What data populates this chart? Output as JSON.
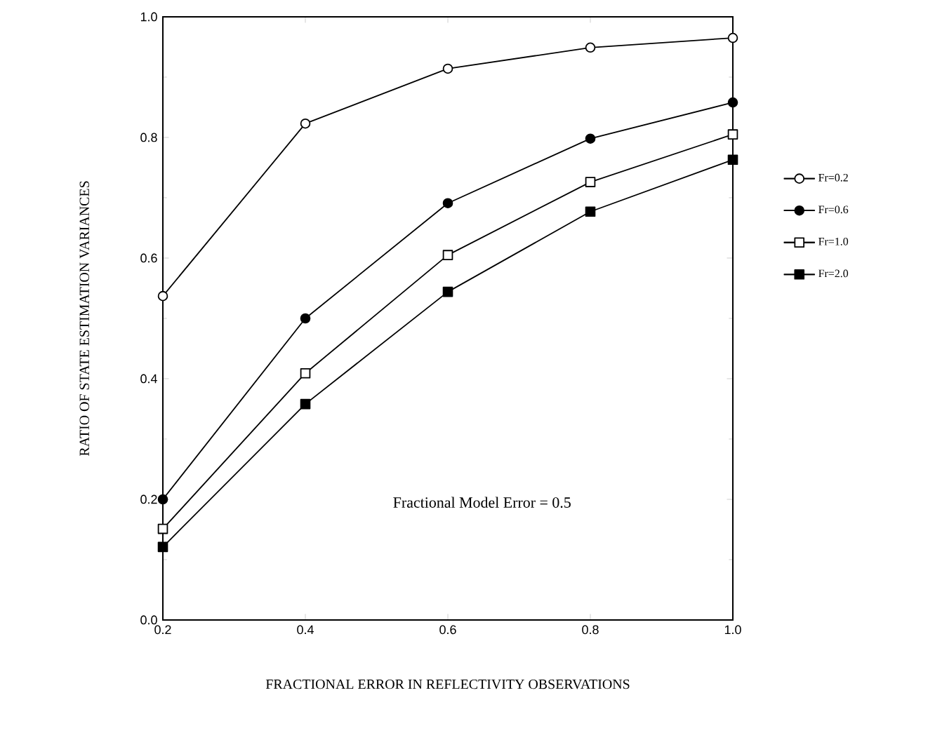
{
  "chart_data": {
    "type": "line",
    "xlabel": "FRACTIONAL ERROR IN REFLECTIVITY OBSERVATIONS",
    "ylabel": "RATIO OF STATE ESTIMATION VARIANCES",
    "annotations": [
      "Fractional Model Error = 0.5"
    ],
    "x": [
      0.2,
      0.4,
      0.6,
      0.8,
      1.0
    ],
    "xlim": [
      0.2,
      1.0
    ],
    "ylim": [
      0.0,
      1.0
    ],
    "xticks": [
      {
        "value": 0.2,
        "label": "0.2"
      },
      {
        "value": 0.4,
        "label": "0.4"
      },
      {
        "value": 0.6,
        "label": "0.6"
      },
      {
        "value": 0.8,
        "label": "0.8"
      },
      {
        "value": 1.0,
        "label": "1.0"
      }
    ],
    "yticks": [
      {
        "value": 0.0,
        "label": "0.0"
      },
      {
        "value": 0.2,
        "label": "0.2"
      },
      {
        "value": 0.4,
        "label": "0.4"
      },
      {
        "value": 0.6,
        "label": "0.6"
      },
      {
        "value": 0.8,
        "label": "0.8"
      },
      {
        "value": 1.0,
        "label": "1.0"
      }
    ],
    "grid": false,
    "legend": "right",
    "line_style": "solid",
    "series": [
      {
        "name": "Fr=0.2",
        "color": "#000000",
        "marker": "circle-open",
        "values": [
          0.537,
          0.823,
          0.914,
          0.949,
          0.965
        ]
      },
      {
        "name": "Fr=0.6",
        "color": "#000000",
        "marker": "circle",
        "values": [
          0.2,
          0.5,
          0.691,
          0.798,
          0.858
        ]
      },
      {
        "name": "Fr=1.0",
        "color": "#000000",
        "marker": "square-open",
        "values": [
          0.151,
          0.409,
          0.605,
          0.726,
          0.805
        ]
      },
      {
        "name": "Fr=2.0",
        "color": "#000000",
        "marker": "square",
        "values": [
          0.121,
          0.358,
          0.544,
          0.677,
          0.763
        ]
      }
    ]
  }
}
